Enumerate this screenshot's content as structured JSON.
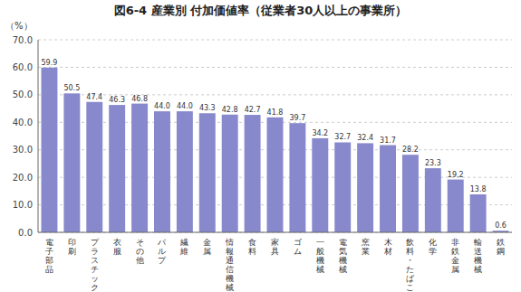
{
  "chart_data": {
    "type": "bar",
    "title": "図6-4  産業別  付加価値率（従業者30人以上の事業所）",
    "y_label": "（%）",
    "categories": [
      "電\n子\n部\n品",
      "印\n刷",
      "プ\nラ\nス\nチ\nッ\nク",
      "衣\n服",
      "そ\nの\n他",
      "パ\nル\nプ",
      "繊\n維",
      "金\n属",
      "情\n報\n通\n信\n機\n械",
      "食\n料",
      "家\n具",
      "ゴ\nム",
      "一\n般\n機\n械",
      "電\n気\n機\n械",
      "窯\n業",
      "木\n材",
      "飲\n料\n・\nた\nば\nこ",
      "化\n学",
      "非\n鉄\n金\n属",
      "輸\n送\n機\n械",
      "鉄\n鋼"
    ],
    "values": [
      59.9,
      50.5,
      47.4,
      46.3,
      46.8,
      44.0,
      44.0,
      43.3,
      42.8,
      42.7,
      41.8,
      39.7,
      34.2,
      32.7,
      32.4,
      31.7,
      28.2,
      23.3,
      19.2,
      13.8,
      0.6
    ],
    "value_labels": [
      "59.9",
      "50.5",
      "47.4",
      "46.3",
      "46.8",
      "44.0",
      "44.0",
      "43.3",
      "42.8",
      "42.7",
      "41.8",
      "39.7",
      "34.2",
      "32.7",
      "32.4",
      "31.7",
      "28.2",
      "23.3",
      "19.2",
      "13.8",
      "0.6"
    ],
    "data_labels": true,
    "color": "#8888CC",
    "ylim": [
      0.0,
      70.0
    ],
    "yticks": [
      {
        "value": 0,
        "label": "0.0"
      },
      {
        "value": 10,
        "label": "10.0"
      },
      {
        "value": 20,
        "label": "20.0"
      },
      {
        "value": 30,
        "label": "30.0"
      },
      {
        "value": 40,
        "label": "40.0"
      },
      {
        "value": 50,
        "label": "50.0"
      },
      {
        "value": 60,
        "label": "60.0"
      },
      {
        "value": 70,
        "label": "70.0"
      }
    ],
    "grid": true
  }
}
